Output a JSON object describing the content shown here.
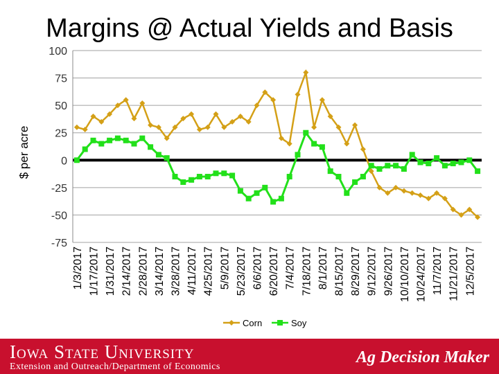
{
  "title": "Margins @ Actual Yields and Basis",
  "footer": {
    "university": "Iowa State University",
    "department": "Extension and Outreach/Department of Economics",
    "brand": "Ag Decision Maker"
  },
  "colors": {
    "corn": "#d4a017",
    "soy": "#22e01a",
    "zero_line": "#000000",
    "grid": "#a0a0a0",
    "footer": "#c8102e"
  },
  "chart_data": {
    "type": "line",
    "title": "Margins @ Actual Yields and Basis",
    "ylabel": "$ per acre",
    "xlabel": "",
    "ylim": [
      -75,
      100
    ],
    "yticks": [
      100,
      75,
      50,
      25,
      0,
      -25,
      -50,
      -75
    ],
    "x": [
      "1/3/2017",
      "1/10/2017",
      "1/17/2017",
      "1/24/2017",
      "1/31/2017",
      "2/7/2017",
      "2/14/2017",
      "2/21/2017",
      "2/28/2017",
      "3/7/2017",
      "3/14/2017",
      "3/21/2017",
      "3/28/2017",
      "4/4/2017",
      "4/11/2017",
      "4/18/2017",
      "4/25/2017",
      "5/2/2017",
      "5/9/2017",
      "5/16/2017",
      "5/23/2017",
      "5/30/2017",
      "6/6/2017",
      "6/13/2017",
      "6/20/2017",
      "6/27/2017",
      "7/4/2017",
      "7/11/2017",
      "7/18/2017",
      "7/25/2017",
      "8/1/2017",
      "8/8/2017",
      "8/15/2017",
      "8/22/2017",
      "8/29/2017",
      "9/5/2017",
      "9/12/2017",
      "9/19/2017",
      "9/26/2017",
      "10/3/2017",
      "10/10/2017",
      "10/17/2017",
      "10/24/2017",
      "10/31/2017",
      "11/7/2017",
      "11/14/2017",
      "11/21/2017",
      "11/28/2017",
      "12/5/2017",
      "12/12/2017"
    ],
    "xtick_labels": [
      "1/3/2017",
      "1/17/2017",
      "1/31/2017",
      "2/14/2017",
      "2/28/2017",
      "3/14/2017",
      "3/28/2017",
      "4/11/2017",
      "4/25/2017",
      "5/9/2017",
      "5/23/2017",
      "6/6/2017",
      "6/20/2017",
      "7/4/2017",
      "7/18/2017",
      "8/1/2017",
      "8/15/2017",
      "8/29/2017",
      "9/12/2017",
      "9/26/2017",
      "10/10/2017",
      "10/24/2017",
      "11/7/2017",
      "11/21/2017",
      "12/5/2017"
    ],
    "legend_position": "bottom",
    "grid": true,
    "series": [
      {
        "name": "Corn",
        "color": "#d4a017",
        "values": [
          30,
          28,
          40,
          35,
          42,
          50,
          55,
          38,
          52,
          32,
          30,
          20,
          30,
          38,
          42,
          28,
          30,
          42,
          30,
          35,
          40,
          35,
          50,
          62,
          55,
          20,
          15,
          60,
          80,
          30,
          55,
          40,
          30,
          15,
          32,
          10,
          -10,
          -25,
          -30,
          -25,
          -28,
          -30,
          -32,
          -35,
          -30,
          -35,
          -45,
          -50,
          -45,
          -52
        ]
      },
      {
        "name": "Soy",
        "color": "#22e01a",
        "values": [
          0,
          10,
          18,
          15,
          18,
          20,
          18,
          15,
          20,
          12,
          5,
          2,
          -15,
          -20,
          -18,
          -15,
          -15,
          -12,
          -12,
          -14,
          -28,
          -35,
          -30,
          -25,
          -38,
          -35,
          -15,
          5,
          25,
          15,
          12,
          -10,
          -15,
          -30,
          -20,
          -15,
          -5,
          -8,
          -5,
          -5,
          -8,
          5,
          -2,
          -3,
          2,
          -5,
          -3,
          -2,
          0,
          -10
        ]
      }
    ]
  }
}
